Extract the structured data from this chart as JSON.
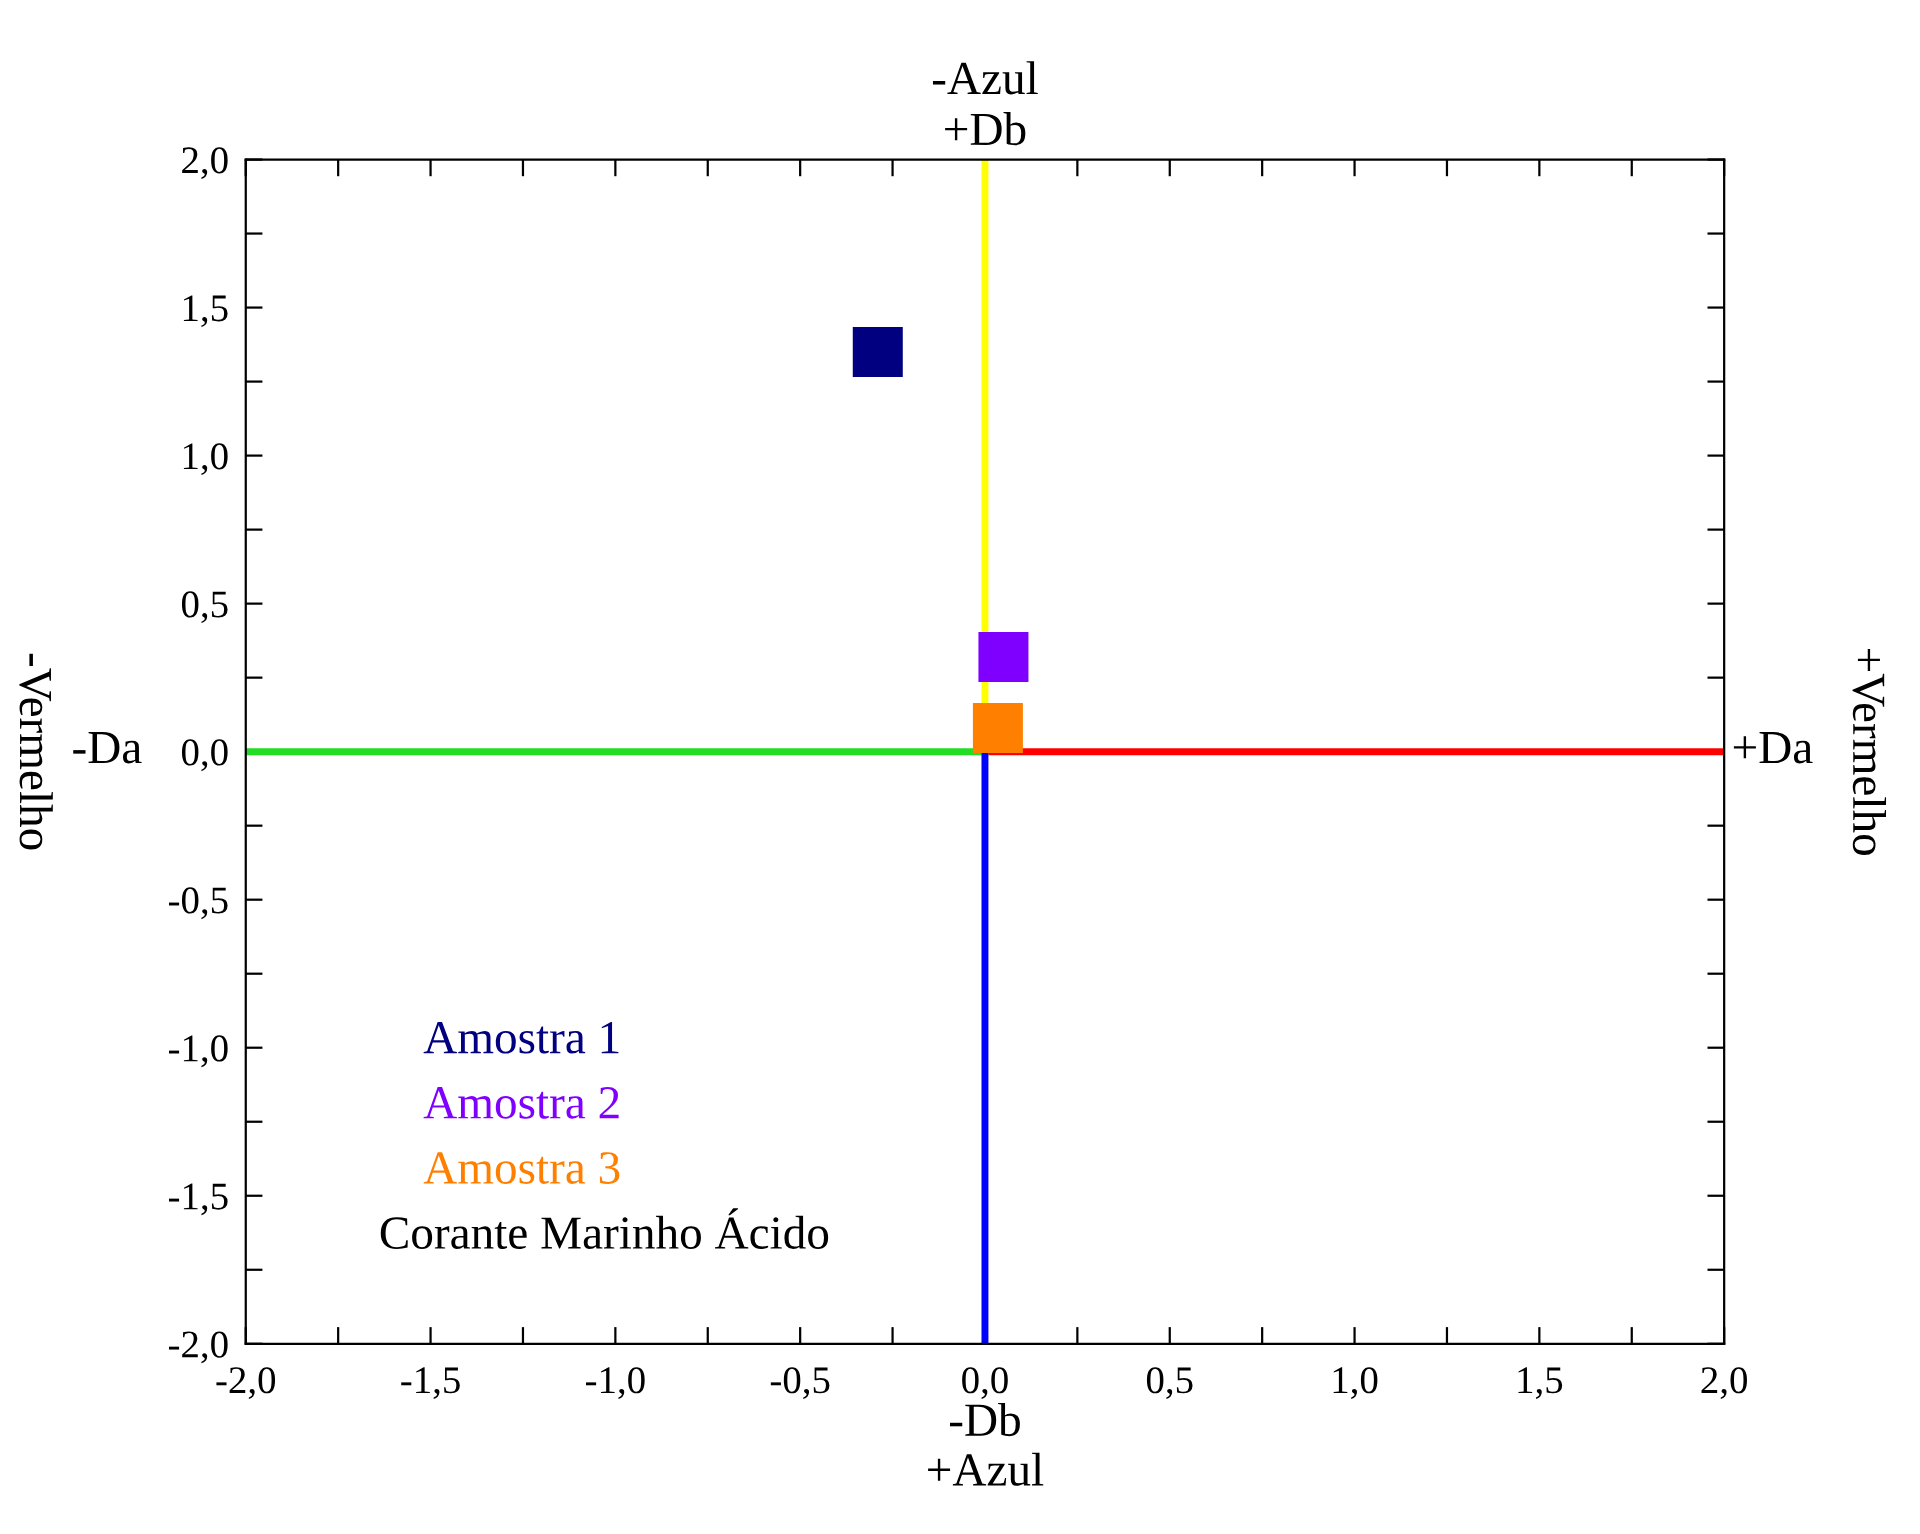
{
  "chart_data": {
    "type": "scatter",
    "legend_title": "Corante Marinho Ácido",
    "legend": "bottom left",
    "xlim": [
      -2,
      2
    ],
    "ylim": [
      -2,
      2
    ],
    "xticks": [
      {
        "value": -2,
        "label": "-2,0"
      },
      {
        "value": -1.75,
        "label": null
      },
      {
        "value": -1.5,
        "label": "-1,5"
      },
      {
        "value": -1.25,
        "label": null
      },
      {
        "value": -1,
        "label": "-1,0"
      },
      {
        "value": -0.75,
        "label": null
      },
      {
        "value": -0.5,
        "label": "-0,5"
      },
      {
        "value": -0.25,
        "label": null
      },
      {
        "value": 0,
        "label": "0,0"
      },
      {
        "value": 0.25,
        "label": null
      },
      {
        "value": 0.5,
        "label": "0,5"
      },
      {
        "value": 0.75,
        "label": null
      },
      {
        "value": 1,
        "label": "1,0"
      },
      {
        "value": 1.25,
        "label": null
      },
      {
        "value": 1.5,
        "label": "1,5"
      },
      {
        "value": 1.75,
        "label": null
      },
      {
        "value": 2,
        "label": "2,0"
      }
    ],
    "yticks": [
      {
        "value": -2,
        "label": "-2,0"
      },
      {
        "value": -1.75,
        "label": null
      },
      {
        "value": -1.5,
        "label": "-1,5"
      },
      {
        "value": -1.25,
        "label": null
      },
      {
        "value": -1,
        "label": "-1,0"
      },
      {
        "value": -0.75,
        "label": null
      },
      {
        "value": -0.5,
        "label": "-0,5"
      },
      {
        "value": -0.25,
        "label": null
      },
      {
        "value": 0,
        "label": "0,0"
      },
      {
        "value": 0.25,
        "label": null
      },
      {
        "value": 0.5,
        "label": "0,5"
      },
      {
        "value": 0.75,
        "label": null
      },
      {
        "value": 1,
        "label": "1,0"
      },
      {
        "value": 1.25,
        "label": null
      },
      {
        "value": 1.5,
        "label": "1,5"
      },
      {
        "value": 1.75,
        "label": null
      },
      {
        "value": 2,
        "label": "2,0"
      }
    ],
    "annotations": [
      "-Azul",
      "+Db",
      "-Db",
      "+Azul",
      "-Da",
      "+Da",
      "-Vermelho",
      "+Vermelho"
    ],
    "series": [
      {
        "type": "line",
        "marker": "none",
        "color": "#22dd22",
        "x": [
          -2,
          0
        ],
        "values": [
          0,
          0
        ]
      },
      {
        "type": "line",
        "marker": "none",
        "color": "#ff0000",
        "x": [
          0,
          2
        ],
        "values": [
          0,
          0
        ]
      },
      {
        "type": "line",
        "marker": "none",
        "color": "#ffff00",
        "x": [
          0,
          0
        ],
        "values": [
          0,
          2
        ]
      },
      {
        "type": "line",
        "marker": "none",
        "color": "#0000ff",
        "x": [
          0,
          0
        ],
        "values": [
          0,
          -2
        ]
      },
      {
        "name": "Amostra 1",
        "marker": "square",
        "color": "#000080",
        "x": [
          -0.29
        ],
        "values": [
          1.35
        ]
      },
      {
        "name": "Amostra 2",
        "marker": "square",
        "color": "#8000ff",
        "x": [
          0.05
        ],
        "values": [
          0.32
        ]
      },
      {
        "name": "Amostra 3",
        "marker": "square",
        "color": "#ff8000",
        "x": [
          0.035
        ],
        "values": [
          0.08
        ]
      }
    ]
  }
}
